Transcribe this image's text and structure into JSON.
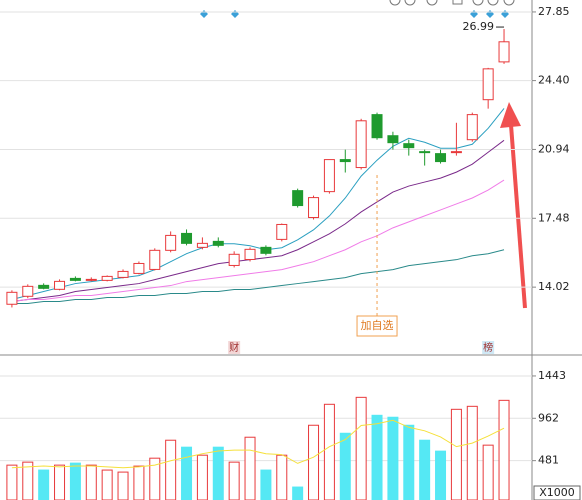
{
  "chart_data": [
    {
      "type": "candlestick",
      "ohlc": [
        [
          13.16,
          13.86,
          13.0,
          13.76
        ],
        [
          13.56,
          14.16,
          13.46,
          14.06
        ],
        [
          14.11,
          14.21,
          13.91,
          13.96
        ],
        [
          13.91,
          14.41,
          13.86,
          14.31
        ],
        [
          14.46,
          14.56,
          14.31,
          14.36
        ],
        [
          14.41,
          14.51,
          14.31,
          14.41
        ],
        [
          14.36,
          14.61,
          14.31,
          14.56
        ],
        [
          14.51,
          14.91,
          14.46,
          14.81
        ],
        [
          14.71,
          15.31,
          14.66,
          15.21
        ],
        [
          14.91,
          15.97,
          14.86,
          15.87
        ],
        [
          15.87,
          16.82,
          15.77,
          16.62
        ],
        [
          16.72,
          16.92,
          16.12,
          16.22
        ],
        [
          16.02,
          16.52,
          15.92,
          16.22
        ],
        [
          16.32,
          16.52,
          16.02,
          16.12
        ],
        [
          15.11,
          15.82,
          15.01,
          15.67
        ],
        [
          15.41,
          16.02,
          15.31,
          15.92
        ],
        [
          16.02,
          16.12,
          15.62,
          15.72
        ],
        [
          16.42,
          17.22,
          16.32,
          17.17
        ],
        [
          18.87,
          18.97,
          18.02,
          18.12
        ],
        [
          17.52,
          18.62,
          17.42,
          18.52
        ],
        [
          18.82,
          20.43,
          18.72,
          20.43
        ],
        [
          20.43,
          20.93,
          19.78,
          20.33
        ],
        [
          20.03,
          22.48,
          19.93,
          22.38
        ],
        [
          22.69,
          22.79,
          21.43,
          21.53
        ],
        [
          21.63,
          21.83,
          20.93,
          21.28
        ],
        [
          21.23,
          21.43,
          20.63,
          21.03
        ],
        [
          20.83,
          20.93,
          20.13,
          20.78
        ],
        [
          20.73,
          20.93,
          20.23,
          20.33
        ],
        [
          20.78,
          22.28,
          20.63,
          20.83
        ],
        [
          21.43,
          22.79,
          21.33,
          22.69
        ],
        [
          23.44,
          25.04,
          22.99,
          24.99
        ],
        [
          25.34,
          26.99,
          25.24,
          26.35
        ]
      ],
      "up_color": "#e8393b",
      "down_color": "#1f9a2e",
      "lines": [
        {
          "color": "#2a9fc0",
          "values": [
            13.4,
            13.6,
            13.8,
            14.0,
            14.2,
            14.3,
            14.4,
            14.5,
            14.6,
            14.9,
            15.3,
            15.7,
            16.0,
            16.2,
            16.2,
            16.1,
            15.9,
            16.0,
            16.4,
            16.9,
            17.6,
            18.5,
            19.6,
            20.4,
            21.1,
            21.5,
            21.3,
            21.0,
            21.0,
            21.2,
            22.0,
            23.0
          ]
        },
        {
          "color": "#7a2a8a",
          "values": [
            13.3,
            13.4,
            13.5,
            13.6,
            13.8,
            13.9,
            14.0,
            14.1,
            14.2,
            14.4,
            14.6,
            14.8,
            15.0,
            15.2,
            15.3,
            15.4,
            15.5,
            15.6,
            15.9,
            16.3,
            16.7,
            17.2,
            17.8,
            18.3,
            18.8,
            19.1,
            19.3,
            19.5,
            19.8,
            20.2,
            20.8,
            21.4
          ]
        },
        {
          "color": "#f07ce8",
          "values": [
            13.3,
            13.4,
            13.4,
            13.5,
            13.6,
            13.6,
            13.7,
            13.8,
            13.9,
            14.0,
            14.1,
            14.3,
            14.4,
            14.5,
            14.6,
            14.7,
            14.8,
            14.9,
            15.1,
            15.3,
            15.6,
            15.9,
            16.3,
            16.6,
            17.0,
            17.3,
            17.6,
            17.9,
            18.2,
            18.5,
            18.9,
            19.4
          ]
        },
        {
          "color": "#2a8a8a",
          "values": [
            13.2,
            13.2,
            13.3,
            13.3,
            13.4,
            13.4,
            13.5,
            13.5,
            13.6,
            13.6,
            13.7,
            13.7,
            13.8,
            13.8,
            13.9,
            13.9,
            14.0,
            14.1,
            14.2,
            14.3,
            14.4,
            14.5,
            14.7,
            14.8,
            14.9,
            15.1,
            15.2,
            15.3,
            15.4,
            15.6,
            15.7,
            15.9
          ]
        }
      ],
      "ylim": [
        10.61,
        28.45
      ],
      "yticks": [
        27.85,
        {
          "value": 24.4,
          "label": "24.40"
        },
        20.94,
        17.48,
        14.02
      ],
      "grid": true,
      "annotations": [
        {
          "text": "加自选",
          "index": 23
        },
        {
          "text": "财",
          "index": 14
        },
        {
          "text": "榜",
          "index": 30
        }
      ]
    },
    {
      "type": "bar",
      "values": [
        430,
        464,
        374,
        430,
        453,
        430,
        374,
        351,
        419,
        509,
        713,
        634,
        543,
        634,
        464,
        747,
        374,
        543,
        181,
        883,
        1121,
        792,
        1200,
        996,
        974,
        883,
        713,
        589,
        1064,
        1098,
        657,
        1166
      ],
      "up_color": "#e8393b",
      "down_color": "#55e8f4",
      "line": {
        "color": "#f5e03a",
        "values": [
          400,
          410,
          420,
          410,
          420,
          420,
          410,
          400,
          410,
          430,
          480,
          520,
          560,
          590,
          600,
          600,
          560,
          550,
          450,
          520,
          640,
          720,
          880,
          900,
          940,
          860,
          820,
          750,
          640,
          680,
          760,
          850
        ]
      },
      "ylim": [
        34,
        1681
      ],
      "yticks": [
        1443,
        962,
        481
      ],
      "unit": "X1000",
      "grid": true
    }
  ]
}
